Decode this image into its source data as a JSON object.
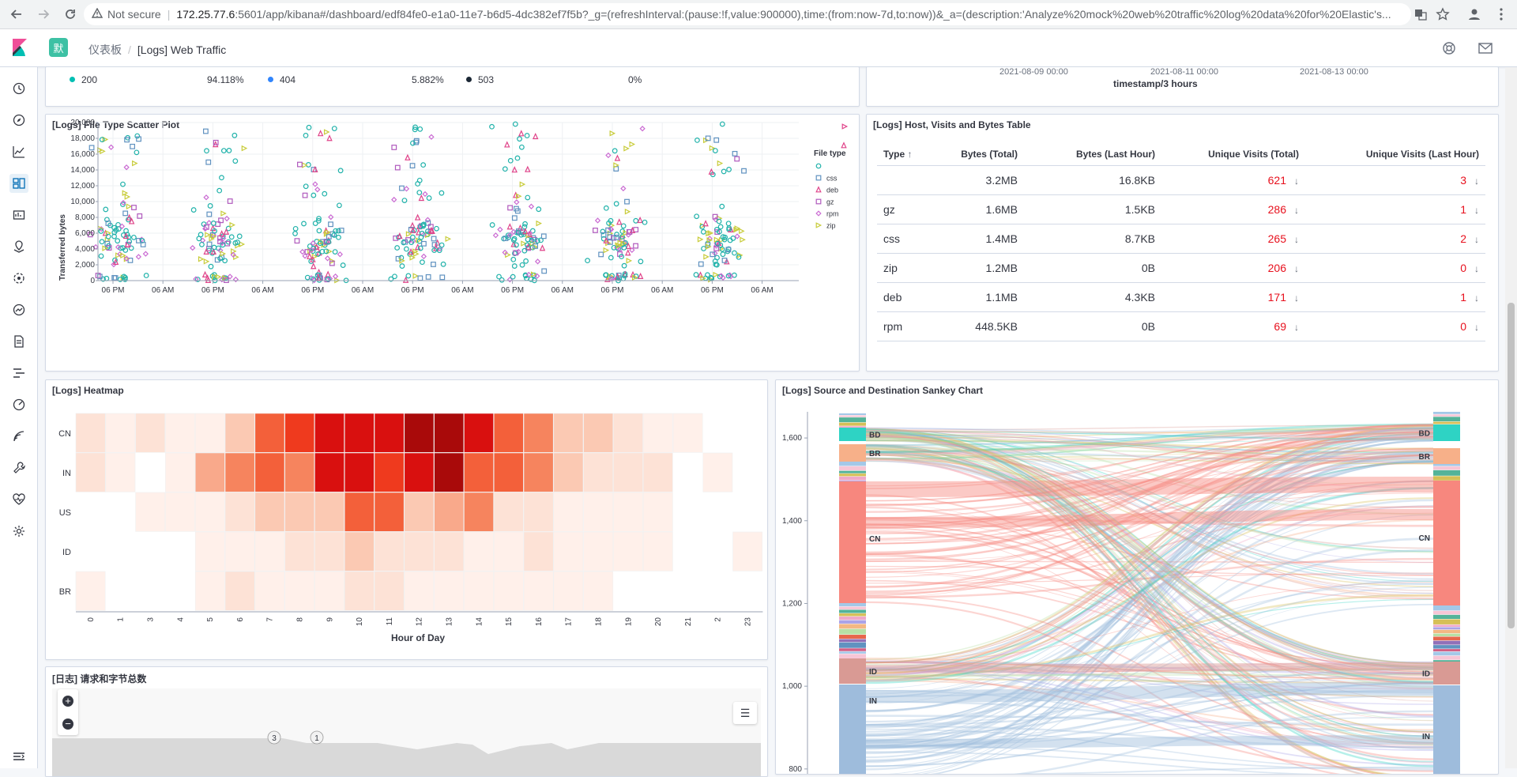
{
  "browser": {
    "security_label": "Not secure",
    "url_host": "172.25.77.6",
    "url_rest": ":5601/app/kibana#/dashboard/edf84fe0-e1a0-11e7-b6d5-4dc382ef7f5b?_g=(refreshInterval:(pause:!f,value:900000),time:(from:now-7d,to:now))&_a=(description:'Analyze%20mock%20web%20traffic%20log%20data%20for%20Elastic's..."
  },
  "header": {
    "space_initial": "默",
    "breadcrumb_root": "仪表板",
    "breadcrumb_current": "[Logs] Web Traffic"
  },
  "response_codes": {
    "items": [
      {
        "label": "200",
        "pct": "94.118%",
        "color": "#00bfb3"
      },
      {
        "label": "404",
        "pct": "5.882%",
        "color": "#3185fc"
      },
      {
        "label": "503",
        "pct": "0%",
        "color": "#1b2735"
      }
    ]
  },
  "timeline_axis": {
    "ticks": [
      "2021-08-09 00:00",
      "2021-08-11 00:00",
      "2021-08-13 00:00"
    ],
    "label": "timestamp/3 hours"
  },
  "scatter": {
    "title": "[Logs] File Type Scatter Plot",
    "legend_title": "File type",
    "legend_first_marker": "circle"
  },
  "hosts_table": {
    "title": "[Logs] Host, Visits and Bytes Table",
    "columns": [
      "Type",
      "Bytes (Total)",
      "Bytes (Last Hour)",
      "Unique Visits (Total)",
      "Unique Visits (Last Hour)"
    ],
    "sort_indicator": "↑",
    "trend_arrow": "↓",
    "rows": [
      {
        "type": "",
        "bytes_total": "3.2MB",
        "bytes_hour": "16.8KB",
        "visits_total": "621",
        "visits_hour": "3"
      },
      {
        "type": "gz",
        "bytes_total": "1.6MB",
        "bytes_hour": "1.5KB",
        "visits_total": "286",
        "visits_hour": "1"
      },
      {
        "type": "css",
        "bytes_total": "1.4MB",
        "bytes_hour": "8.7KB",
        "visits_total": "265",
        "visits_hour": "2"
      },
      {
        "type": "zip",
        "bytes_total": "1.2MB",
        "bytes_hour": "0B",
        "visits_total": "206",
        "visits_hour": "0"
      },
      {
        "type": "deb",
        "bytes_total": "1.1MB",
        "bytes_hour": "4.3KB",
        "visits_total": "171",
        "visits_hour": "1"
      },
      {
        "type": "rpm",
        "bytes_total": "448.5KB",
        "bytes_hour": "0B",
        "visits_total": "69",
        "visits_hour": "0"
      }
    ]
  },
  "heatmap": {
    "title": "[Logs] Heatmap"
  },
  "sankey": {
    "title": "[Logs] Source and Destination Sankey Chart"
  },
  "map": {
    "title": "[日志] 请求和字节总数",
    "zoom_in": "+",
    "zoom_out": "−",
    "layers_icon": "☰",
    "cluster_a": "3",
    "cluster_b": "1"
  },
  "chart_data": [
    {
      "type": "scatter",
      "title": "[Logs] File Type Scatter Plot",
      "xlabel": "",
      "ylabel": "Transferred bytes",
      "ylim": [
        0,
        20000
      ],
      "yticks": [
        "0",
        "2,000",
        "4,000",
        "6,000",
        "8,000",
        "10,000",
        "12,000",
        "14,000",
        "16,000",
        "18,000",
        "20,000"
      ],
      "xticks": [
        "06 PM",
        "06 AM",
        "06 PM",
        "06 AM",
        "06 PM",
        "06 AM",
        "06 PM",
        "06 AM",
        "06 PM",
        "06 AM",
        "06 PM",
        "06 AM",
        "06 PM",
        "06 AM"
      ],
      "series": [
        {
          "name": "",
          "marker": "circle",
          "color": "#20b2aa"
        },
        {
          "name": "css",
          "marker": "square",
          "color": "#6092c0"
        },
        {
          "name": "deb",
          "marker": "triangle",
          "color": "#e0448a"
        },
        {
          "name": "gz",
          "marker": "plus-square",
          "color": "#b05abd"
        },
        {
          "name": "rpm",
          "marker": "diamond",
          "color": "#ca6ad2"
        },
        {
          "name": "zip",
          "marker": "triangle-right",
          "color": "#c8cc3a"
        }
      ],
      "note": "Approx. 7 daily clusters of points (one per day), densest 4,000–10,000 bytes, scattered outliers up to 20,000."
    },
    {
      "type": "heatmap",
      "title": "[Logs] Heatmap",
      "xlabel": "Hour of Day",
      "ylabel": "",
      "x": [
        "0",
        "1",
        "3",
        "4",
        "5",
        "6",
        "7",
        "8",
        "9",
        "10",
        "11",
        "12",
        "13",
        "14",
        "15",
        "16",
        "17",
        "18",
        "19",
        "20",
        "21",
        "2",
        "23"
      ],
      "y": [
        "CN",
        "IN",
        "US",
        "ID",
        "BR"
      ],
      "values": [
        [
          2,
          1,
          2,
          1,
          1,
          3,
          6,
          7,
          8,
          8,
          8,
          9,
          9,
          8,
          6,
          5,
          3,
          3,
          2,
          1,
          1,
          0,
          0
        ],
        [
          2,
          1,
          0,
          1,
          4,
          5,
          6,
          5,
          8,
          8,
          7,
          8,
          9,
          6,
          6,
          5,
          3,
          2,
          2,
          2,
          0,
          1,
          0
        ],
        [
          0,
          0,
          1,
          1,
          1,
          2,
          3,
          3,
          3,
          6,
          6,
          3,
          4,
          5,
          2,
          2,
          1,
          1,
          1,
          1,
          0,
          0,
          0
        ],
        [
          0,
          0,
          0,
          0,
          1,
          1,
          1,
          2,
          2,
          3,
          2,
          2,
          2,
          1,
          1,
          2,
          1,
          1,
          1,
          1,
          0,
          0,
          1
        ],
        [
          1,
          0,
          0,
          0,
          1,
          2,
          1,
          1,
          1,
          2,
          2,
          1,
          1,
          1,
          1,
          1,
          1,
          1,
          0,
          0,
          0,
          0,
          0
        ]
      ],
      "value_range": [
        0,
        9
      ]
    },
    {
      "type": "sankey",
      "title": "[Logs] Source and Destination Sankey Chart",
      "ylim": [
        750,
        1625
      ],
      "yticks": [
        "800",
        "1,000",
        "1,200",
        "1,400",
        "1,600"
      ],
      "source_nodes": [
        "BD",
        "BR",
        "CN",
        "ID",
        "IN"
      ],
      "target_nodes": [
        "BD",
        "BR",
        "CN",
        "ID",
        "IN"
      ]
    }
  ]
}
